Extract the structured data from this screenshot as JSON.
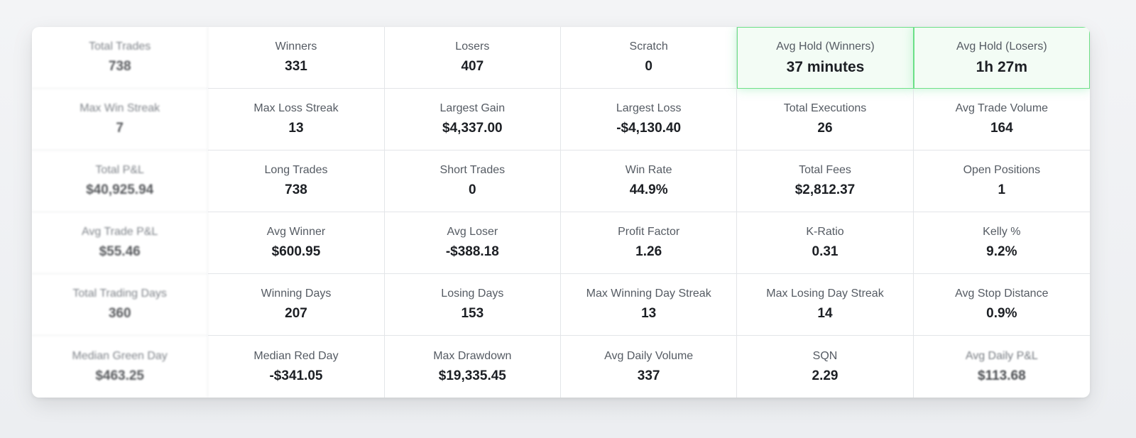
{
  "stats": {
    "rows": [
      [
        {
          "label": "Total Trades",
          "value": "738"
        },
        {
          "label": "Winners",
          "value": "331"
        },
        {
          "label": "Losers",
          "value": "407"
        },
        {
          "label": "Scratch",
          "value": "0"
        },
        {
          "label": "Avg Hold (Winners)",
          "value": "37 minutes"
        },
        {
          "label": "Avg Hold (Losers)",
          "value": "1h 27m"
        }
      ],
      [
        {
          "label": "Max Win Streak",
          "value": "7"
        },
        {
          "label": "Max Loss Streak",
          "value": "13"
        },
        {
          "label": "Largest Gain",
          "value": "$4,337.00"
        },
        {
          "label": "Largest Loss",
          "value": "-$4,130.40"
        },
        {
          "label": "Total Executions",
          "value": "26"
        },
        {
          "label": "Avg Trade Volume",
          "value": "164"
        }
      ],
      [
        {
          "label": "Total P&L",
          "value": "$40,925.94"
        },
        {
          "label": "Long Trades",
          "value": "738"
        },
        {
          "label": "Short Trades",
          "value": "0"
        },
        {
          "label": "Win Rate",
          "value": "44.9%"
        },
        {
          "label": "Total Fees",
          "value": "$2,812.37"
        },
        {
          "label": "Open Positions",
          "value": "1"
        }
      ],
      [
        {
          "label": "Avg Trade P&L",
          "value": "$55.46"
        },
        {
          "label": "Avg Winner",
          "value": "$600.95"
        },
        {
          "label": "Avg Loser",
          "value": "-$388.18"
        },
        {
          "label": "Profit Factor",
          "value": "1.26"
        },
        {
          "label": "K-Ratio",
          "value": "0.31"
        },
        {
          "label": "Kelly %",
          "value": "9.2%"
        }
      ],
      [
        {
          "label": "Total Trading Days",
          "value": "360"
        },
        {
          "label": "Winning Days",
          "value": "207"
        },
        {
          "label": "Losing Days",
          "value": "153"
        },
        {
          "label": "Max Winning Day Streak",
          "value": "13"
        },
        {
          "label": "Max Losing Day Streak",
          "value": "14"
        },
        {
          "label": "Avg Stop Distance",
          "value": "0.9%"
        }
      ],
      [
        {
          "label": "Median Green Day",
          "value": "$463.25"
        },
        {
          "label": "Median Red Day",
          "value": "-$341.05"
        },
        {
          "label": "Max Drawdown",
          "value": "$19,335.45"
        },
        {
          "label": "Avg Daily Volume",
          "value": "337"
        },
        {
          "label": "SQN",
          "value": "2.29"
        },
        {
          "label": "Avg Daily P&L",
          "value": "$113.68"
        }
      ]
    ]
  }
}
